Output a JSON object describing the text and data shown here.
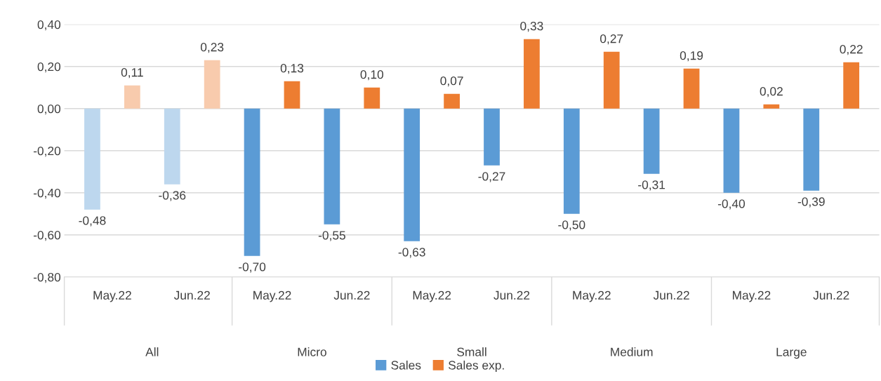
{
  "chart_data": {
    "type": "bar",
    "categories": [
      "May.22",
      "Jun.22",
      "May.22",
      "Jun.22",
      "May.22",
      "Jun.22",
      "May.22",
      "Jun.22",
      "May.22",
      "Jun.22"
    ],
    "annotations": [
      "All",
      "Micro",
      "Small",
      "Medium",
      "Large"
    ],
    "series": [
      {
        "name": "Sales",
        "color": "#5b9bd5",
        "colors": [
          "#bdd7ee",
          "#bdd7ee",
          "#5b9bd5",
          "#5b9bd5",
          "#5b9bd5",
          "#5b9bd5",
          "#5b9bd5",
          "#5b9bd5",
          "#5b9bd5",
          "#5b9bd5"
        ],
        "values": [
          -0.48,
          -0.36,
          -0.7,
          -0.55,
          -0.63,
          -0.27,
          -0.5,
          -0.31,
          -0.4,
          -0.39
        ],
        "value_labels": [
          "-0,48",
          "-0,36",
          "-0,70",
          "-0,55",
          "-0,63",
          "-0,27",
          "-0,50",
          "-0,31",
          "-0,40",
          "-0,39"
        ]
      },
      {
        "name": "Sales exp.",
        "color": "#ed7d31",
        "colors": [
          "#f8cbad",
          "#f8cbad",
          "#ed7d31",
          "#ed7d31",
          "#ed7d31",
          "#ed7d31",
          "#ed7d31",
          "#ed7d31",
          "#ed7d31",
          "#ed7d31"
        ],
        "values": [
          0.11,
          0.23,
          0.13,
          0.1,
          0.07,
          0.33,
          0.27,
          0.19,
          0.02,
          0.22
        ],
        "value_labels": [
          "0,11",
          "0,23",
          "0,13",
          "0,10",
          "0,07",
          "0,33",
          "0,27",
          "0,19",
          "0,02",
          "0,22"
        ]
      }
    ],
    "ylim": [
      -0.8,
      0.4
    ],
    "yticks": [
      {
        "value": -0.8,
        "label": "-0,80"
      },
      {
        "value": -0.6,
        "label": "-0,60"
      },
      {
        "value": -0.4,
        "label": "-0,40"
      },
      {
        "value": -0.2,
        "label": "-0,20"
      },
      {
        "value": 0,
        "label": "0,00"
      },
      {
        "value": 0.2,
        "label": "0,20"
      },
      {
        "value": 0.4,
        "label": "0,40"
      }
    ],
    "grid": "y",
    "legend": "bottom"
  }
}
